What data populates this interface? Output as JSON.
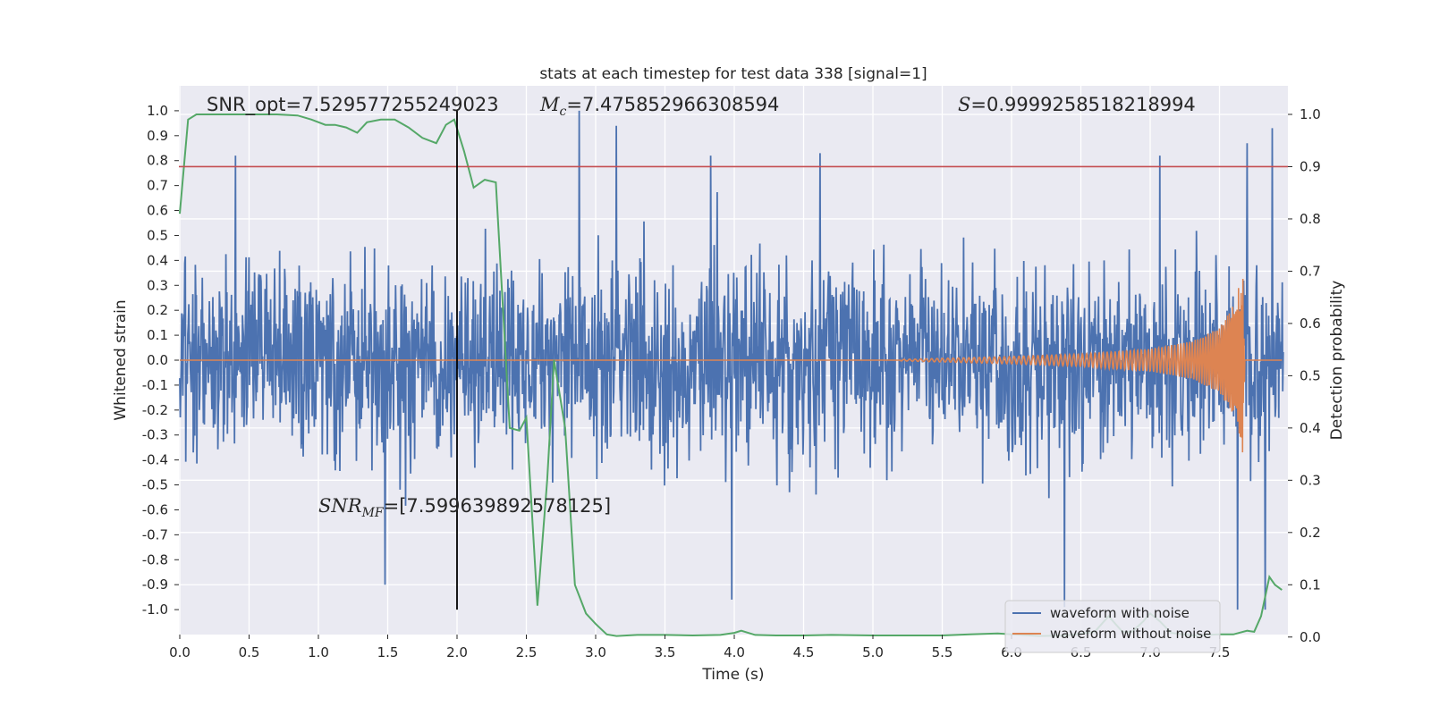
{
  "chart_data": {
    "type": "line",
    "title": "stats at each timestep for test data 338 [signal=1]",
    "xlabel": "Time (s)",
    "ylabel": "Whitened strain",
    "ylabel_right": "Detection probability",
    "xlim": [
      0.0,
      8.0
    ],
    "ylim": [
      -1.1,
      1.1
    ],
    "ylim_right": [
      -0.05,
      1.0
    ],
    "x_ticks": [
      "0.0",
      "0.5",
      "1.0",
      "1.5",
      "2.0",
      "2.5",
      "3.0",
      "3.5",
      "4.0",
      "4.5",
      "5.0",
      "5.5",
      "6.0",
      "6.5",
      "7.0",
      "7.5"
    ],
    "y_ticks": [
      "1.0",
      "0.9",
      "0.8",
      "0.7",
      "0.6",
      "0.5",
      "0.4",
      "0.3",
      "0.2",
      "0.1",
      "0.0",
      "-0.1",
      "-0.2",
      "-0.3",
      "-0.4",
      "-0.5",
      "-0.6",
      "-0.7",
      "-0.8",
      "-0.9",
      "-1.0"
    ],
    "y_ticks_right": [
      "1.0",
      "0.9",
      "0.8",
      "0.7",
      "0.6",
      "0.5",
      "0.4",
      "0.3",
      "0.2",
      "0.1",
      "0.0"
    ],
    "grid": true,
    "legend_position": "lower-right",
    "annotations": {
      "snr_opt": "SNR_opt=7.529577255249023",
      "mc_symbol": "M",
      "mc_sub": "c",
      "mc_value": "=7.475852966308594",
      "s_symbol": "S",
      "s_value": "=0.9999258518218994",
      "snr_mf_symbol": "SNR",
      "snr_mf_sub": "MF",
      "snr_mf_value": "=[7.599639892578125]"
    },
    "threshold_line": {
      "axis": "right",
      "value": 0.9,
      "color": "#c44e52"
    },
    "vertical_line": {
      "x": 2.0,
      "color": "#000000"
    },
    "series": [
      {
        "name": "waveform with noise",
        "color": "#4c72b0",
        "axis": "left",
        "kind": "dense noise, typical amplitude about ±0.4, peaks up to about ±1.0",
        "notable_peaks": [
          {
            "x": 0.4,
            "y": 0.82
          },
          {
            "x": 2.88,
            "y": 1.0
          },
          {
            "x": 3.15,
            "y": 0.94
          },
          {
            "x": 3.83,
            "y": 0.82
          },
          {
            "x": 4.62,
            "y": 0.83
          },
          {
            "x": 7.07,
            "y": 0.82
          },
          {
            "x": 7.7,
            "y": 0.87
          },
          {
            "x": 7.88,
            "y": 0.93
          },
          {
            "x": 1.48,
            "y": -0.9
          },
          {
            "x": 3.98,
            "y": -0.96
          },
          {
            "x": 6.38,
            "y": -0.99
          },
          {
            "x": 7.63,
            "y": -1.0
          },
          {
            "x": 7.83,
            "y": -1.0
          }
        ]
      },
      {
        "name": "waveform without noise",
        "color": "#dd8452",
        "axis": "left",
        "kind": "chirp starting near 5.2 s, growing to peak about ±0.45 at 7.68 s, then zero",
        "envelope": [
          {
            "x": 5.2,
            "a": 0.003
          },
          {
            "x": 6.0,
            "a": 0.015
          },
          {
            "x": 6.5,
            "a": 0.025
          },
          {
            "x": 7.0,
            "a": 0.045
          },
          {
            "x": 7.3,
            "a": 0.075
          },
          {
            "x": 7.5,
            "a": 0.13
          },
          {
            "x": 7.6,
            "a": 0.22
          },
          {
            "x": 7.66,
            "a": 0.34
          },
          {
            "x": 7.68,
            "a": 0.44
          }
        ]
      },
      {
        "name": "",
        "color": "#55a868",
        "axis": "right",
        "label": "detection probability",
        "x": [
          0.0,
          0.06,
          0.12,
          0.2,
          0.3,
          0.5,
          0.7,
          0.85,
          0.95,
          1.05,
          1.12,
          1.2,
          1.28,
          1.35,
          1.45,
          1.55,
          1.65,
          1.75,
          1.85,
          1.92,
          1.98,
          2.05,
          2.12,
          2.2,
          2.28,
          2.38,
          2.45,
          2.5,
          2.58,
          2.65,
          2.7,
          2.78,
          2.85,
          2.93,
          3.0,
          3.08,
          3.15,
          3.3,
          3.5,
          3.7,
          3.9,
          4.0,
          4.05,
          4.15,
          4.3,
          4.5,
          4.7,
          5.0,
          5.3,
          5.5,
          5.7,
          5.9,
          6.0,
          6.2,
          6.4,
          6.6,
          6.7,
          6.8,
          6.87,
          6.95,
          7.0,
          7.07,
          7.15,
          7.3,
          7.5,
          7.6,
          7.7,
          7.75,
          7.8,
          7.86,
          7.9,
          7.95
        ],
        "y": [
          0.81,
          0.99,
          1.0,
          1.0,
          1.0,
          1.0,
          1.0,
          0.998,
          0.99,
          0.98,
          0.98,
          0.975,
          0.965,
          0.985,
          0.99,
          0.99,
          0.975,
          0.955,
          0.945,
          0.98,
          0.99,
          0.93,
          0.86,
          0.875,
          0.87,
          0.4,
          0.395,
          0.42,
          0.06,
          0.3,
          0.53,
          0.4,
          0.1,
          0.045,
          0.025,
          0.005,
          0.002,
          0.004,
          0.004,
          0.003,
          0.004,
          0.008,
          0.012,
          0.004,
          0.003,
          0.003,
          0.004,
          0.003,
          0.003,
          0.003,
          0.005,
          0.007,
          0.005,
          0.002,
          0.003,
          0.01,
          0.04,
          0.01,
          0.01,
          0.03,
          0.045,
          0.03,
          0.008,
          0.003,
          0.005,
          0.005,
          0.012,
          0.01,
          0.04,
          0.115,
          0.1,
          0.09
        ]
      }
    ]
  }
}
